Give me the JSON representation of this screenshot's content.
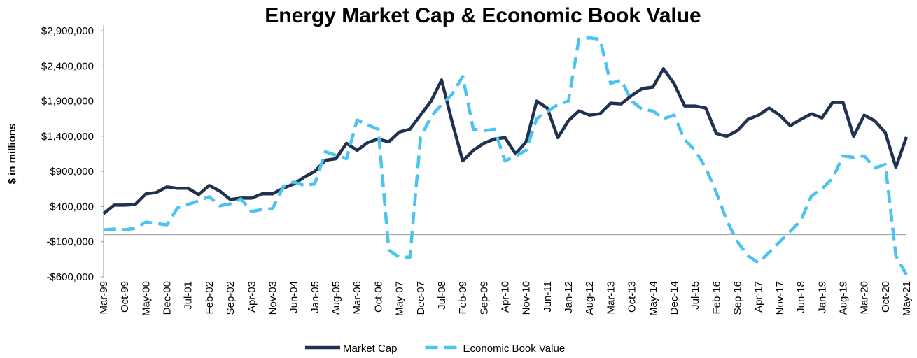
{
  "chart_data": {
    "type": "line",
    "title": "Energy Market Cap & Economic Book Value",
    "y_label": "$ in millions",
    "categories": [
      "Mar-99",
      null,
      "Oct-99",
      null,
      "May-00",
      null,
      "Dec-00",
      null,
      "Jul-01",
      null,
      "Feb-02",
      null,
      "Sep-02",
      null,
      "Apr-03",
      null,
      "Nov-03",
      null,
      "Jun-04",
      null,
      "Jan-05",
      null,
      "Aug-05",
      null,
      "Mar-06",
      null,
      "Oct-06",
      null,
      "May-07",
      null,
      "Dec-07",
      null,
      "Jul-08",
      null,
      "Feb-09",
      null,
      "Sep-09",
      null,
      "Apr-10",
      null,
      "Nov-10",
      null,
      "Jun-11",
      null,
      "Jan-12",
      null,
      "Aug-12",
      null,
      "Mar-13",
      null,
      "Oct-13",
      null,
      "May-14",
      null,
      "Dec-14",
      null,
      "Jul-15",
      null,
      "Feb-16",
      null,
      "Sep-16",
      null,
      "Apr-17",
      null,
      "Nov-17",
      null,
      "Jun-18",
      null,
      "Jan-19",
      null,
      "Aug-19",
      null,
      "Mar-20",
      null,
      "Oct-20",
      null,
      "May-21"
    ],
    "series": [
      {
        "name": "Market Cap",
        "color": "#1f3350",
        "dashed": false,
        "values": [
          300000,
          420000,
          420000,
          430000,
          580000,
          600000,
          680000,
          660000,
          660000,
          570000,
          700000,
          620000,
          500000,
          520000,
          520000,
          580000,
          580000,
          660000,
          720000,
          820000,
          900000,
          1060000,
          1080000,
          1300000,
          1200000,
          1310000,
          1360000,
          1320000,
          1460000,
          1500000,
          1700000,
          1900000,
          2200000,
          1600000,
          1050000,
          1200000,
          1300000,
          1360000,
          1380000,
          1150000,
          1320000,
          1900000,
          1800000,
          1380000,
          1620000,
          1760000,
          1700000,
          1720000,
          1870000,
          1860000,
          1980000,
          2080000,
          2100000,
          2360000,
          2150000,
          1830000,
          1830000,
          1800000,
          1440000,
          1400000,
          1480000,
          1640000,
          1700000,
          1800000,
          1700000,
          1550000,
          1640000,
          1720000,
          1660000,
          1880000,
          1880000,
          1400000,
          1700000,
          1620000,
          1450000,
          960000,
          1390000
        ]
      },
      {
        "name": "Economic Book Value",
        "color": "#4dc3ef",
        "dashed": true,
        "values": [
          70000,
          80000,
          70000,
          90000,
          180000,
          160000,
          140000,
          380000,
          430000,
          480000,
          540000,
          410000,
          440000,
          510000,
          330000,
          360000,
          370000,
          680000,
          750000,
          700000,
          720000,
          1180000,
          1130000,
          1080000,
          1630000,
          1560000,
          1500000,
          -220000,
          -320000,
          -320000,
          1380000,
          1680000,
          1850000,
          2000000,
          2250000,
          1500000,
          1480000,
          1500000,
          1050000,
          1120000,
          1200000,
          1650000,
          1750000,
          1850000,
          1900000,
          2780000,
          2800000,
          2780000,
          2150000,
          2200000,
          1900000,
          1780000,
          1760000,
          1650000,
          1700000,
          1350000,
          1200000,
          950000,
          600000,
          200000,
          -100000,
          -300000,
          -400000,
          -250000,
          -100000,
          50000,
          200000,
          550000,
          650000,
          800000,
          1120000,
          1100000,
          1120000,
          950000,
          1000000,
          -300000,
          -570000
        ]
      }
    ],
    "ylim": [
      -600000,
      2900000
    ],
    "yticks": [
      {
        "value": -600000,
        "label": "-$600,000"
      },
      {
        "value": -100000,
        "label": "-$100,000"
      },
      {
        "value": 400000,
        "label": "$400,000"
      },
      {
        "value": 900000,
        "label": "$900,000"
      },
      {
        "value": 1400000,
        "label": "$1,400,000"
      },
      {
        "value": 1900000,
        "label": "$1,900,000"
      },
      {
        "value": 2400000,
        "label": "$2,400,000"
      },
      {
        "value": 2900000,
        "label": "$2,900,000"
      }
    ],
    "grid": false,
    "legend": "bottom"
  }
}
